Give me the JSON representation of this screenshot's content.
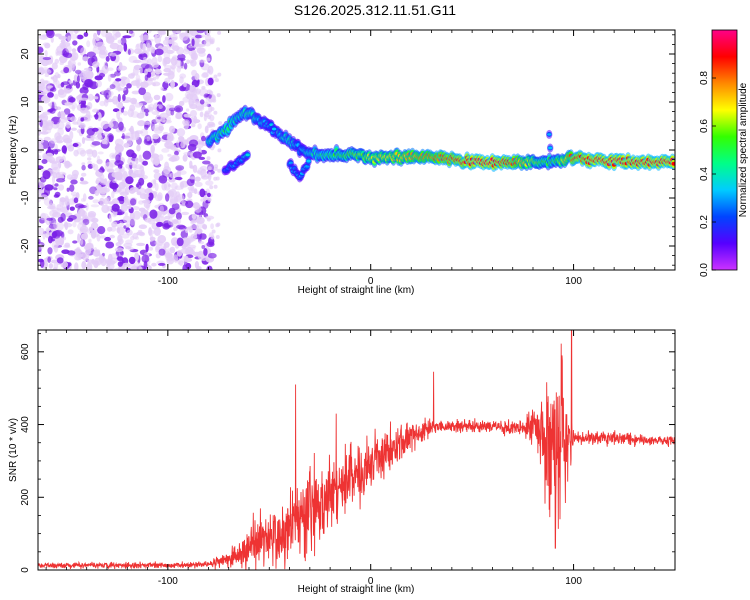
{
  "title": "S126.2025.312.11.51.G11",
  "colors": {
    "spectrum_low": "#e3ccf7",
    "spectrum_mid": "#7a1fe6",
    "snr_line": "#ee3333"
  },
  "chart_data": [
    {
      "id": "spectrogram",
      "type": "heatmap",
      "title": "",
      "xlabel": "Height of straight line (km)",
      "ylabel": "Frequency (Hz)",
      "xlim": [
        -164,
        150
      ],
      "ylim": [
        -25,
        25
      ],
      "x_ticks": [
        -100,
        0,
        100
      ],
      "y_ticks": [
        -20,
        -10,
        0,
        10,
        20
      ],
      "colorbar": {
        "label": "Normalized spectral amplitude",
        "range": [
          0,
          1
        ],
        "ticks": [
          "0.0",
          "0.2",
          "0.4",
          "0.6",
          "0.8"
        ],
        "tick_values": [
          0.0,
          0.2,
          0.4,
          0.6,
          0.8
        ],
        "stops": [
          "#cc33ff",
          "#5500ff",
          "#0044ff",
          "#00ccff",
          "#00ff88",
          "#33ff00",
          "#ffff00",
          "#ff8800",
          "#ff0000",
          "#ff0088"
        ]
      },
      "noise_region_x": [
        -164,
        -80
      ],
      "ridge": [
        {
          "x": -80,
          "y": 2,
          "a": 0.4
        },
        {
          "x": -75,
          "y": 3,
          "a": 0.45
        },
        {
          "x": -70,
          "y": 5,
          "a": 0.5
        },
        {
          "x": -65,
          "y": 7,
          "a": 0.4
        },
        {
          "x": -60,
          "y": 8,
          "a": 0.45
        },
        {
          "x": -55,
          "y": 6,
          "a": 0.35
        },
        {
          "x": -50,
          "y": 5,
          "a": 0.4
        },
        {
          "x": -45,
          "y": 3,
          "a": 0.35
        },
        {
          "x": -40,
          "y": 2,
          "a": 0.4
        },
        {
          "x": -35,
          "y": 0,
          "a": 0.3
        },
        {
          "x": -30,
          "y": -1,
          "a": 0.4
        },
        {
          "x": -20,
          "y": -1,
          "a": 0.5
        },
        {
          "x": -10,
          "y": -1,
          "a": 0.55
        },
        {
          "x": 0,
          "y": -1.5,
          "a": 0.65
        },
        {
          "x": 10,
          "y": -1.5,
          "a": 0.7
        },
        {
          "x": 20,
          "y": -1.5,
          "a": 0.75
        },
        {
          "x": 30,
          "y": -1.5,
          "a": 0.8
        },
        {
          "x": 40,
          "y": -2,
          "a": 0.85
        },
        {
          "x": 50,
          "y": -2.5,
          "a": 0.9
        },
        {
          "x": 60,
          "y": -2.5,
          "a": 0.9
        },
        {
          "x": 70,
          "y": -2.5,
          "a": 0.85
        },
        {
          "x": 80,
          "y": -2.5,
          "a": 0.6
        },
        {
          "x": 90,
          "y": -2.5,
          "a": 0.5
        },
        {
          "x": 100,
          "y": -1.5,
          "a": 0.85
        },
        {
          "x": 110,
          "y": -2,
          "a": 0.9
        },
        {
          "x": 120,
          "y": -2.5,
          "a": 0.9
        },
        {
          "x": 130,
          "y": -2.5,
          "a": 0.9
        },
        {
          "x": 140,
          "y": -2.5,
          "a": 0.9
        },
        {
          "x": 150,
          "y": -2.5,
          "a": 0.9
        }
      ],
      "branches": [
        {
          "x": -72,
          "y": -4,
          "a": 0.25
        },
        {
          "x": -67,
          "y": -3,
          "a": 0.3
        },
        {
          "x": -60,
          "y": -1,
          "a": 0.35
        },
        {
          "x": -52,
          "y": 6,
          "a": 0.35
        },
        {
          "x": -47,
          "y": 4,
          "a": 0.3
        },
        {
          "x": -40,
          "y": -3,
          "a": 0.3
        },
        {
          "x": -35,
          "y": -6,
          "a": 0.3
        },
        {
          "x": -30,
          "y": -2,
          "a": 0.35
        },
        {
          "x": 88,
          "y": 3,
          "a": 0.3
        }
      ]
    },
    {
      "id": "snr",
      "type": "line",
      "title": "",
      "xlabel": "Height of straight line (km)",
      "ylabel": "SNR (10 * v/v)",
      "xlim": [
        -164,
        150
      ],
      "ylim": [
        0,
        660
      ],
      "x_ticks": [
        -100,
        0,
        100
      ],
      "y_ticks": [
        0,
        200,
        400,
        600
      ],
      "envelope": [
        {
          "x": -164,
          "base": 12,
          "noise": 8
        },
        {
          "x": -80,
          "base": 14,
          "noise": 8
        },
        {
          "x": -70,
          "base": 30,
          "noise": 25
        },
        {
          "x": -60,
          "base": 60,
          "noise": 60
        },
        {
          "x": -50,
          "base": 90,
          "noise": 80
        },
        {
          "x": -40,
          "base": 110,
          "noise": 100
        },
        {
          "x": -30,
          "base": 160,
          "noise": 110
        },
        {
          "x": -20,
          "base": 200,
          "noise": 90
        },
        {
          "x": -10,
          "base": 250,
          "noise": 80
        },
        {
          "x": 0,
          "base": 290,
          "noise": 70
        },
        {
          "x": 10,
          "base": 330,
          "noise": 60
        },
        {
          "x": 20,
          "base": 370,
          "noise": 40
        },
        {
          "x": 30,
          "base": 395,
          "noise": 20
        },
        {
          "x": 60,
          "base": 395,
          "noise": 15
        },
        {
          "x": 75,
          "base": 390,
          "noise": 20
        },
        {
          "x": 82,
          "base": 400,
          "noise": 60
        },
        {
          "x": 88,
          "base": 350,
          "noise": 230
        },
        {
          "x": 94,
          "base": 330,
          "noise": 250
        },
        {
          "x": 100,
          "base": 365,
          "noise": 20
        },
        {
          "x": 150,
          "base": 355,
          "noise": 12
        }
      ],
      "spikes": [
        {
          "x": -37,
          "y": 510
        },
        {
          "x": -17,
          "y": 430
        },
        {
          "x": 31,
          "y": 545
        },
        {
          "x": 99,
          "y": 660
        },
        {
          "x": 91,
          "y": 60
        }
      ]
    }
  ]
}
